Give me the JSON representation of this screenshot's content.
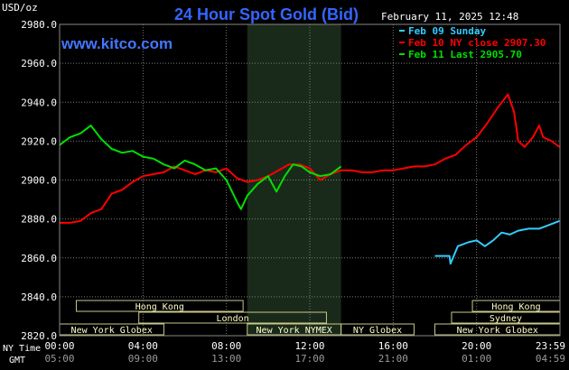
{
  "header": {
    "title": "24 Hour Spot Gold (Bid)",
    "y_unit": "USD/oz",
    "brand": "www.kitco.com",
    "datetime": "February 11, 2025 12:48"
  },
  "legend": [
    {
      "label": "Feb 09 Sunday",
      "color": "#33ccff"
    },
    {
      "label": "Feb 10 NY close 2907.30",
      "color": "#ff0000"
    },
    {
      "label": "Feb 11 Last 2905.70",
      "color": "#00e000"
    }
  ],
  "sessions": [
    {
      "label": "Hong Kong",
      "row": 0,
      "start": 0.8,
      "end": 8.8
    },
    {
      "label": "Hong Kong",
      "row": 0,
      "start": 19.8,
      "end": 24.0
    },
    {
      "label": "London",
      "row": 1,
      "start": 3.8,
      "end": 12.8
    },
    {
      "label": "Sydney",
      "row": 1,
      "start": 18.8,
      "end": 24.0
    },
    {
      "label": "New York Globex",
      "row": 2,
      "start": 0.0,
      "end": 5.0
    },
    {
      "label": "New York NYMEX",
      "row": 2,
      "start": 9.0,
      "end": 13.5
    },
    {
      "label": "NY Globex",
      "row": 2,
      "start": 13.5,
      "end": 17.0
    },
    {
      "label": "New York Globex",
      "row": 2,
      "start": 18.0,
      "end": 24.0
    }
  ],
  "x_axis": {
    "row1_caption": "NY Time",
    "row2_caption": "GMT",
    "ny_ticks": [
      "00:00",
      "04:00",
      "08:00",
      "12:00",
      "16:00",
      "20:00",
      "23:59"
    ],
    "gmt_ticks": [
      "05:00",
      "09:00",
      "13:00",
      "17:00",
      "21:00",
      "01:00",
      "04:59"
    ]
  },
  "colors": {
    "background": "#000000",
    "grid": "#7a7a7a",
    "axis_text": "#ffffff",
    "title": "#3366ff",
    "brand": "#4477ff",
    "shade": "#1a2a1a",
    "session_border": "#c8c888",
    "session_text": "#ffffcc"
  },
  "chart_data": {
    "type": "line",
    "title": "24 Hour Spot Gold (Bid)",
    "ylabel": "USD/oz",
    "ylim": [
      2820,
      2980
    ],
    "xlim": [
      0,
      24
    ],
    "yticks": [
      "2980.0",
      "2960.0",
      "2940.0",
      "2920.0",
      "2900.0",
      "2880.0",
      "2860.0",
      "2840.0",
      "2820.0"
    ],
    "shaded_hours": [
      9,
      13.5
    ],
    "grid": true,
    "legend_position": "top-right",
    "series": [
      {
        "name": "Feb 09 Sunday",
        "color": "#33ccff",
        "points": [
          [
            18.0,
            2861
          ],
          [
            18.7,
            2861
          ],
          [
            18.75,
            2857
          ],
          [
            19.1,
            2866
          ],
          [
            19.6,
            2868
          ],
          [
            20.0,
            2869
          ],
          [
            20.4,
            2866
          ],
          [
            20.8,
            2869
          ],
          [
            21.2,
            2873
          ],
          [
            21.6,
            2872
          ],
          [
            22.0,
            2874
          ],
          [
            22.5,
            2875
          ],
          [
            23.0,
            2875
          ],
          [
            23.5,
            2877
          ],
          [
            23.98,
            2879
          ]
        ]
      },
      {
        "name": "Feb 10 NY close 2907.30",
        "color": "#ff0000",
        "points": [
          [
            0.0,
            2878
          ],
          [
            0.5,
            2878
          ],
          [
            1.0,
            2879
          ],
          [
            1.5,
            2883
          ],
          [
            2.0,
            2885
          ],
          [
            2.5,
            2893
          ],
          [
            3.0,
            2895
          ],
          [
            3.5,
            2899
          ],
          [
            4.0,
            2902
          ],
          [
            4.5,
            2903
          ],
          [
            5.0,
            2904
          ],
          [
            5.5,
            2907
          ],
          [
            6.0,
            2905
          ],
          [
            6.5,
            2903
          ],
          [
            7.0,
            2905
          ],
          [
            7.5,
            2904
          ],
          [
            8.0,
            2906
          ],
          [
            8.5,
            2901
          ],
          [
            9.0,
            2899
          ],
          [
            9.5,
            2900
          ],
          [
            10.0,
            2902
          ],
          [
            10.5,
            2905
          ],
          [
            11.0,
            2908
          ],
          [
            11.5,
            2908
          ],
          [
            12.0,
            2906
          ],
          [
            12.5,
            2900
          ],
          [
            13.0,
            2903
          ],
          [
            13.5,
            2905
          ],
          [
            14.0,
            2905
          ],
          [
            14.5,
            2904
          ],
          [
            15.0,
            2904
          ],
          [
            15.5,
            2905
          ],
          [
            16.0,
            2905
          ],
          [
            16.5,
            2906
          ],
          [
            17.0,
            2907
          ],
          [
            17.5,
            2907
          ],
          [
            18.0,
            2908
          ],
          [
            18.5,
            2911
          ],
          [
            19.0,
            2913
          ],
          [
            19.5,
            2918
          ],
          [
            20.0,
            2922
          ],
          [
            20.5,
            2929
          ],
          [
            21.0,
            2937
          ],
          [
            21.5,
            2944
          ],
          [
            21.8,
            2935
          ],
          [
            22.0,
            2920
          ],
          [
            22.3,
            2917
          ],
          [
            22.7,
            2922
          ],
          [
            23.0,
            2928
          ],
          [
            23.2,
            2922
          ],
          [
            23.6,
            2920
          ],
          [
            23.98,
            2917
          ]
        ]
      },
      {
        "name": "Feb 11 Last 2905.70",
        "color": "#00e000",
        "points": [
          [
            0.0,
            2918
          ],
          [
            0.5,
            2922
          ],
          [
            1.0,
            2924
          ],
          [
            1.5,
            2928
          ],
          [
            2.0,
            2921
          ],
          [
            2.5,
            2916
          ],
          [
            3.0,
            2914
          ],
          [
            3.5,
            2915
          ],
          [
            4.0,
            2912
          ],
          [
            4.5,
            2911
          ],
          [
            5.0,
            2908
          ],
          [
            5.5,
            2906
          ],
          [
            6.0,
            2910
          ],
          [
            6.5,
            2908
          ],
          [
            7.0,
            2905
          ],
          [
            7.5,
            2906
          ],
          [
            8.0,
            2900
          ],
          [
            8.5,
            2889
          ],
          [
            8.7,
            2885
          ],
          [
            9.0,
            2892
          ],
          [
            9.5,
            2898
          ],
          [
            10.0,
            2902
          ],
          [
            10.4,
            2894
          ],
          [
            10.8,
            2902
          ],
          [
            11.2,
            2908
          ],
          [
            11.6,
            2907
          ],
          [
            12.0,
            2904
          ],
          [
            12.5,
            2902
          ],
          [
            13.0,
            2903
          ],
          [
            13.5,
            2907
          ]
        ]
      }
    ]
  }
}
